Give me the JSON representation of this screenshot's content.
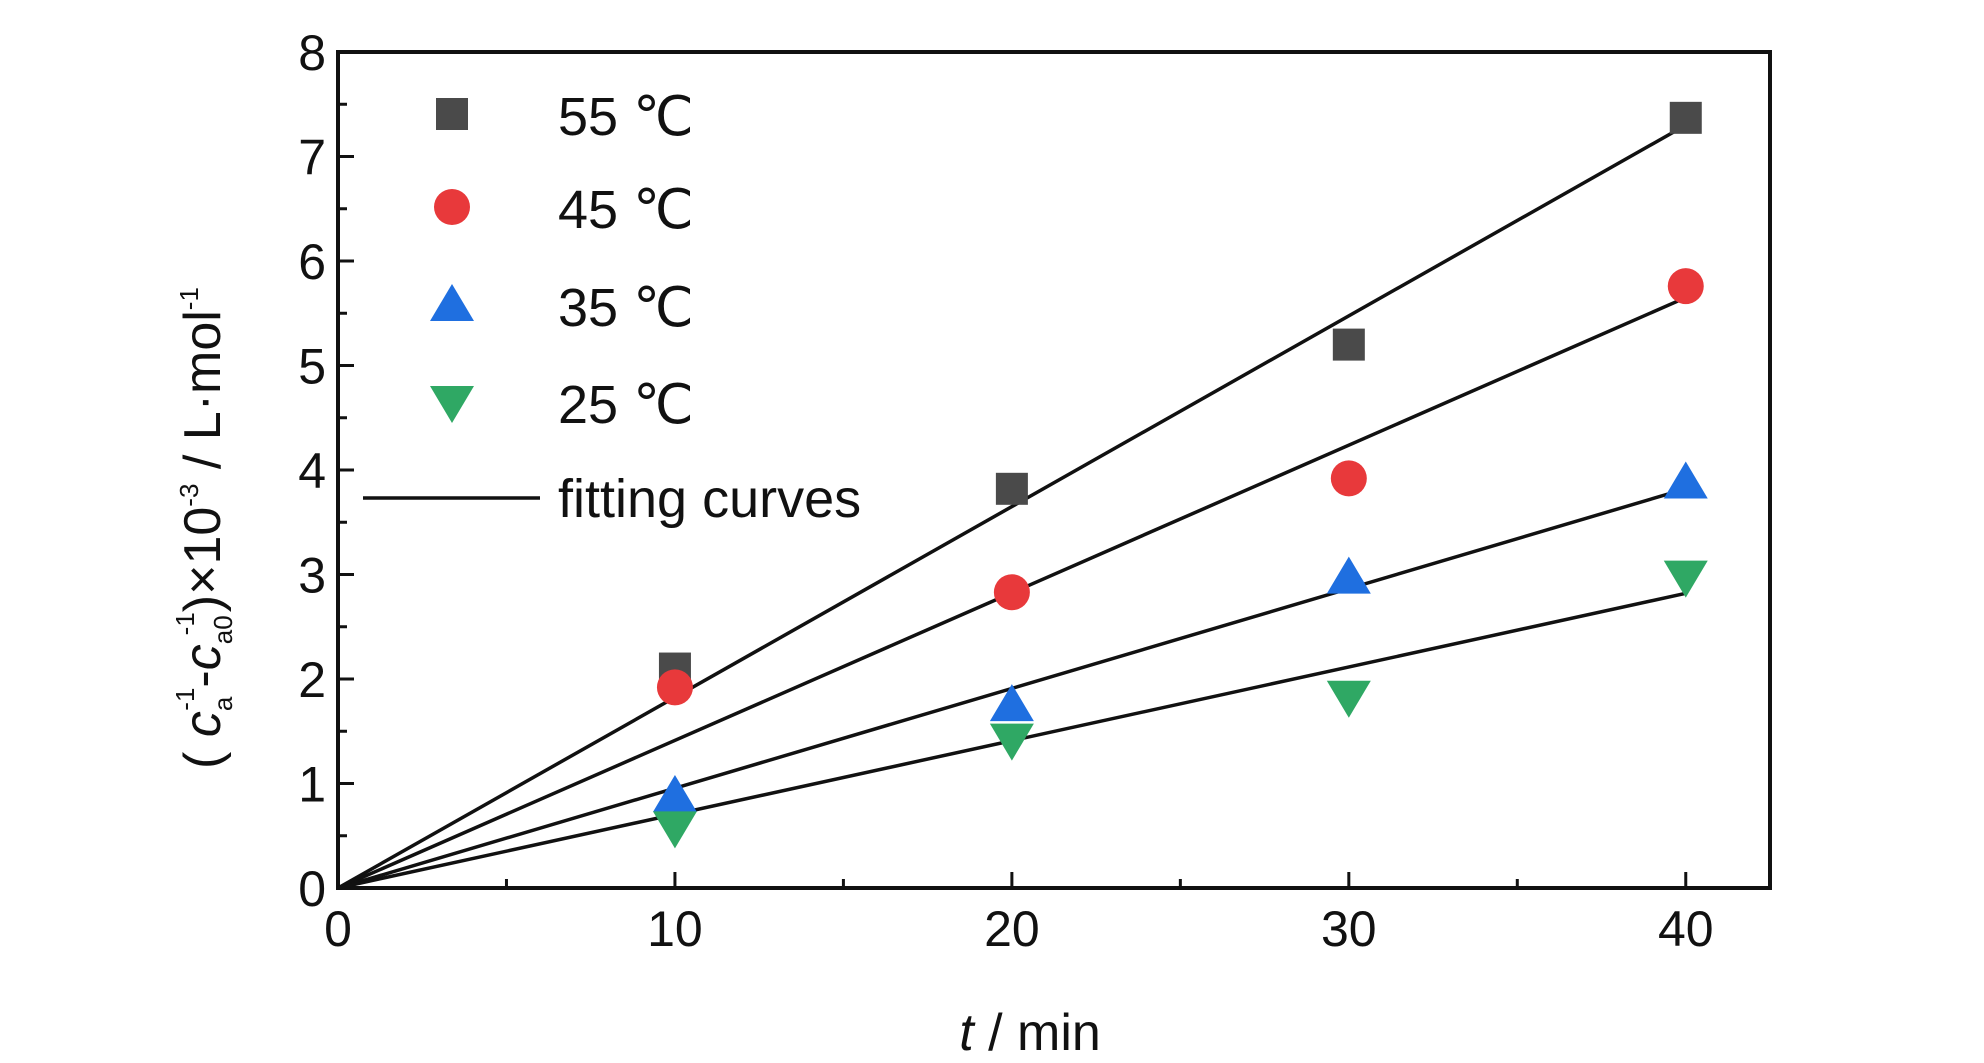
{
  "chart_data": {
    "type": "scatter",
    "xlabel": {
      "italic": "t",
      "rest": " / min"
    },
    "ylabel": {
      "open": "( ",
      "c1": "c",
      "c1_sub": "a",
      "c1_sup": "-1",
      "minus": "-",
      "c2": "c",
      "c2_sub": "a0",
      "c2_sup": "-1",
      "close": ")×10",
      "exp": "-3",
      "unit": " / L·mol",
      "unit_sup": "-1"
    },
    "xlim": [
      0,
      42.5
    ],
    "ylim": [
      0,
      8
    ],
    "x_ticks": [
      0,
      10,
      20,
      30,
      40
    ],
    "x_tick_labels": [
      "0",
      "10",
      "20",
      "30",
      "40"
    ],
    "y_ticks": [
      0,
      1,
      2,
      3,
      4,
      5,
      6,
      7,
      8
    ],
    "y_tick_labels": [
      "0",
      "1",
      "2",
      "3",
      "4",
      "5",
      "6",
      "7",
      "8"
    ],
    "x": [
      10,
      20,
      30,
      40
    ],
    "series": [
      {
        "name": "55 ℃",
        "marker": "square",
        "color": "#4a4a4a",
        "values": [
          2.1,
          3.82,
          5.2,
          7.37
        ],
        "fit_end": 7.3
      },
      {
        "name": "45 ℃",
        "marker": "circle",
        "color": "#e8393b",
        "values": [
          1.92,
          2.83,
          3.92,
          5.76
        ],
        "fit_end": 5.65
      },
      {
        "name": "35 ℃",
        "marker": "triangle-up",
        "color": "#1f6fe0",
        "values": [
          0.88,
          1.75,
          2.97,
          3.88
        ],
        "fit_end": 3.82
      },
      {
        "name": "25 ℃",
        "marker": "triangle-down",
        "color": "#2fa864",
        "values": [
          0.58,
          1.42,
          1.83,
          2.98
        ],
        "fit_end": 2.82
      }
    ],
    "fit": {
      "name": "fitting curves",
      "color": "#111111",
      "x_range": [
        0,
        40
      ]
    },
    "legend_position": "top-left",
    "grid": false
  }
}
